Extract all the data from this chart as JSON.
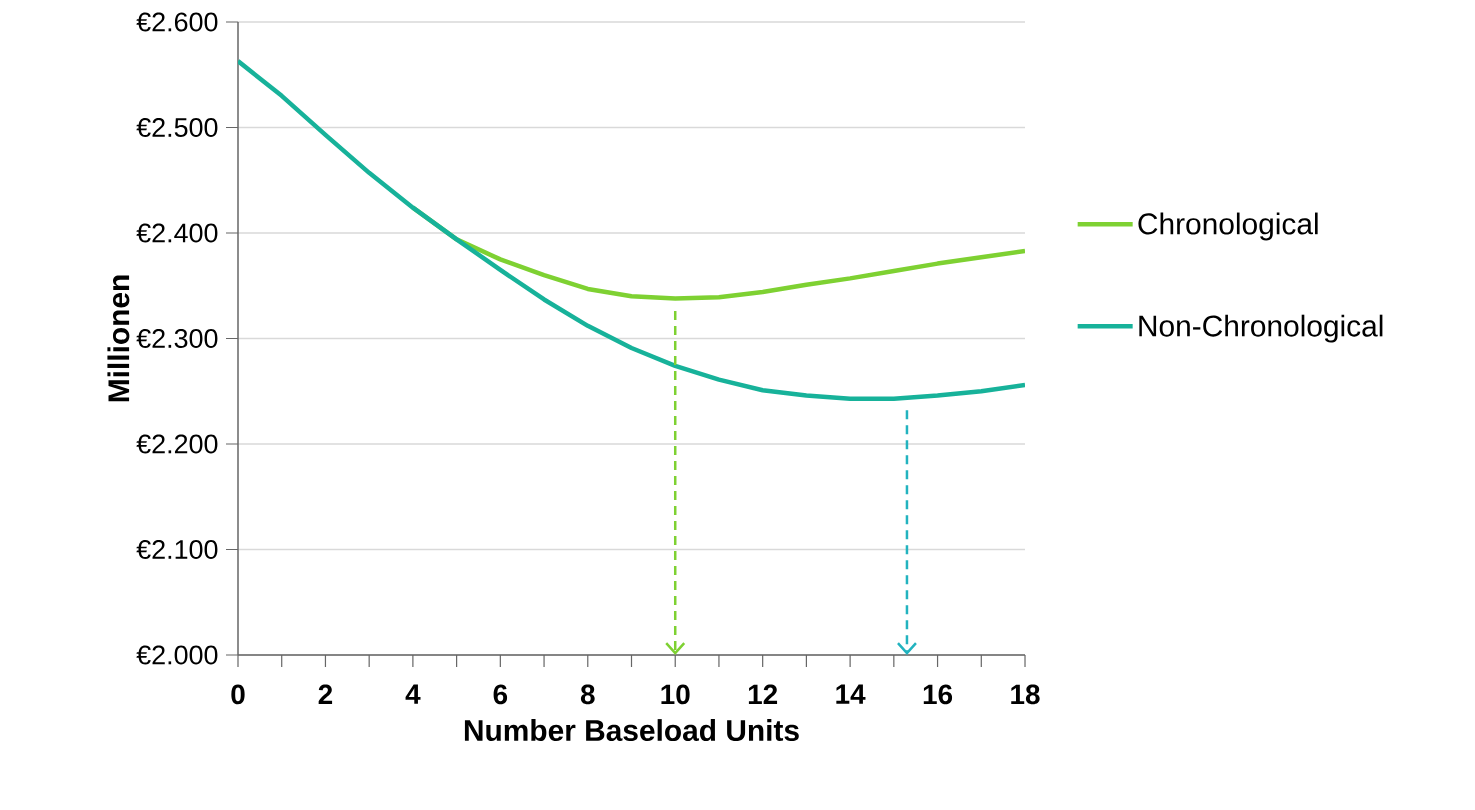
{
  "chart_data": {
    "type": "line",
    "xlabel": "Number Baseload Units",
    "ylabel": "Millionen",
    "x": [
      0,
      1,
      2,
      3,
      4,
      5,
      6,
      7,
      8,
      9,
      10,
      11,
      12,
      13,
      14,
      15,
      16,
      17,
      18
    ],
    "series": [
      {
        "name": "Chronological",
        "color": "#7ed132",
        "values": [
          null,
          null,
          null,
          null,
          2424,
          2394,
          2375,
          2360,
          2347,
          2340,
          2338,
          2339,
          2344,
          2351,
          2357,
          2364,
          2371,
          2377,
          2383
        ]
      },
      {
        "name": "Non-Chronological",
        "color": "#17b29a",
        "values": [
          2563,
          2530,
          2493,
          2457,
          2424,
          2394,
          2365,
          2337,
          2312,
          2291,
          2274,
          2261,
          2251,
          2246,
          2243,
          2243,
          2246,
          2250,
          2256
        ]
      }
    ],
    "xlim": [
      0,
      18
    ],
    "ylim": [
      2000,
      2600
    ],
    "xticks": [
      0,
      {
        "value": 1,
        "label": null
      },
      2,
      {
        "value": 3,
        "label": null
      },
      4,
      {
        "value": 5,
        "label": null
      },
      6,
      {
        "value": 7,
        "label": null
      },
      8,
      {
        "value": 9,
        "label": null
      },
      10,
      {
        "value": 11,
        "label": null
      },
      12,
      {
        "value": 13,
        "label": null
      },
      14,
      {
        "value": 15,
        "label": null
      },
      16,
      {
        "value": 17,
        "label": null
      },
      18
    ],
    "yticks": [
      {
        "value": 2000,
        "label": "€2.000"
      },
      {
        "value": 2100,
        "label": "€2.100"
      },
      {
        "value": 2200,
        "label": "€2.200"
      },
      {
        "value": 2300,
        "label": "€2.300"
      },
      {
        "value": 2400,
        "label": "€2.400"
      },
      {
        "value": 2500,
        "label": "€2.500"
      },
      {
        "value": 2600,
        "label": "€2.600"
      }
    ],
    "ref_lines": [
      {
        "axis": "x",
        "value": 10,
        "color": "#7ed132",
        "line_style": "dashed"
      },
      {
        "axis": "x",
        "value": 15.3,
        "color": "#22b3bf",
        "line_style": "dashed"
      }
    ],
    "grid": "y",
    "legend": "right",
    "marker": "none",
    "line_style": "solid"
  }
}
